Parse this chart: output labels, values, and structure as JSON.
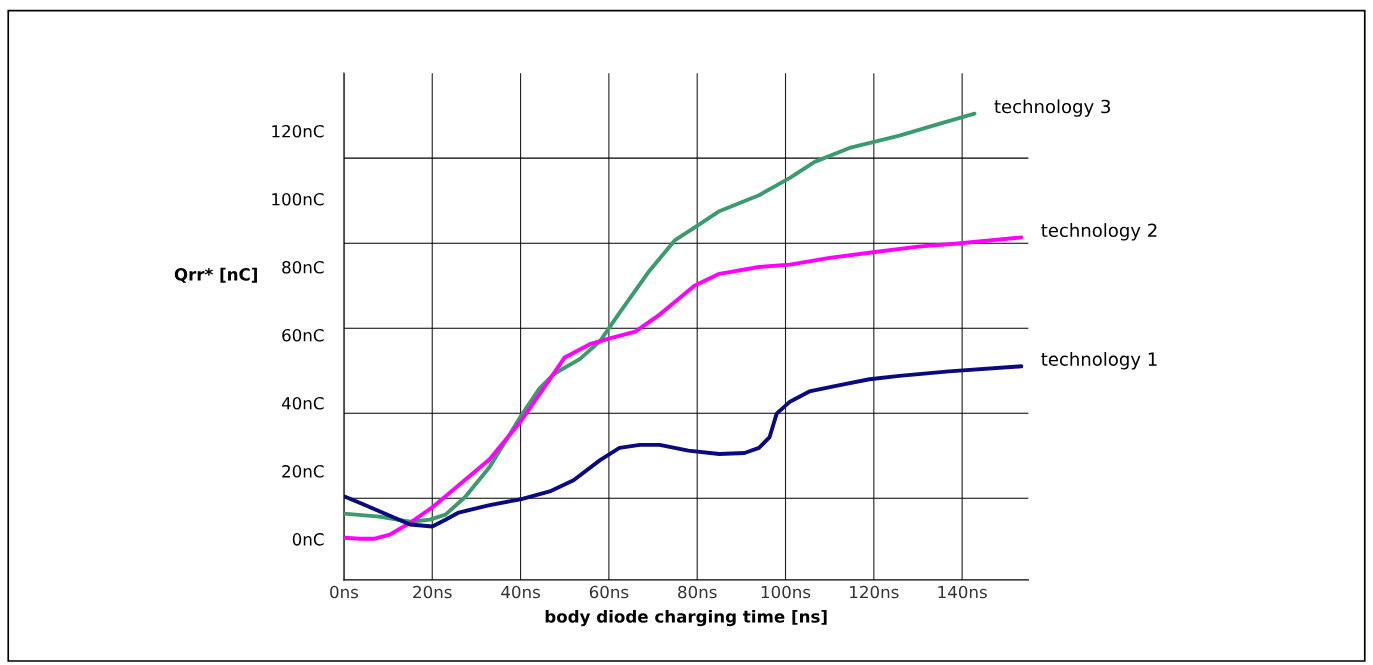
{
  "chart_data": {
    "type": "line",
    "xlabel": "body diode charging time [ns]",
    "ylabel": "Qrr* [nC]",
    "xlim": [
      0,
      155
    ],
    "xticks": [
      {
        "value": 0,
        "label": "0ns"
      },
      {
        "value": 20,
        "label": "20ns"
      },
      {
        "value": 40,
        "label": "40ns"
      },
      {
        "value": 60,
        "label": "60ns"
      },
      {
        "value": 80,
        "label": "80ns"
      },
      {
        "value": 100,
        "label": "100ns"
      },
      {
        "value": 120,
        "label": "120ns"
      },
      {
        "value": 140,
        "label": "140ns"
      }
    ],
    "ylim": [
      -12,
      137
    ],
    "yticks": [
      {
        "value": 0,
        "label": "0nC"
      },
      {
        "value": 20,
        "label": "20nC"
      },
      {
        "value": 40,
        "label": "40nC"
      },
      {
        "value": 60,
        "label": "60nC"
      },
      {
        "value": 80,
        "label": "80nC"
      },
      {
        "value": 100,
        "label": "100nC"
      },
      {
        "value": 120,
        "label": "120nC"
      }
    ],
    "grid": "x",
    "legend": false,
    "marker": "none",
    "line_style": "solid",
    "ref_lines": [
      {
        "axis": "y",
        "value": 12,
        "color": "#000000"
      },
      {
        "axis": "y",
        "value": 37,
        "color": "#000000"
      },
      {
        "axis": "y",
        "value": 62,
        "color": "#000000"
      },
      {
        "axis": "y",
        "value": 87,
        "color": "#000000"
      },
      {
        "axis": "y",
        "value": 112,
        "color": "#000000"
      }
    ],
    "series": [
      {
        "name": "technology 3",
        "color": "#3c9b6e",
        "x": [
          0,
          8,
          15,
          19.5,
          23,
          27.4,
          33,
          40,
          44.3,
          47.7,
          53.4,
          58,
          62.4,
          69.2,
          74.9,
          80.5,
          85,
          94,
          101,
          106.6,
          114.5,
          125.8,
          134.8,
          142.8
        ],
        "values": [
          7.5,
          6.6,
          5.1,
          5.7,
          7.2,
          12.3,
          21.2,
          36,
          44.3,
          48.7,
          52.9,
          58.2,
          66.5,
          78.9,
          87.8,
          92.5,
          96.4,
          101.1,
          106.2,
          110.9,
          115,
          118.6,
          122.1,
          125.1
        ]
      },
      {
        "name": "technology 2",
        "color": "#ff00ff",
        "x": [
          0,
          3.6,
          7,
          10.4,
          15,
          20,
          26,
          33,
          40,
          45.5,
          50,
          55.7,
          60.2,
          66,
          71.5,
          79.4,
          85,
          94,
          101,
          110,
          119,
          130,
          139,
          153.4
        ],
        "values": [
          0.4,
          0.1,
          0.1,
          1.3,
          4.8,
          9.3,
          15.8,
          23.5,
          34.5,
          44.8,
          53.4,
          57.3,
          59,
          61,
          66,
          74.5,
          78,
          80,
          80.7,
          82.7,
          84.2,
          86,
          86.9,
          88.7
        ]
      },
      {
        "name": "technology 1",
        "color": "#0a0a80",
        "x": [
          0,
          4.75,
          15,
          20,
          23,
          26,
          33,
          40,
          46.6,
          52,
          58,
          62.4,
          67,
          71.5,
          78,
          85,
          90.7,
          94,
          96.4,
          98,
          101,
          105.4,
          112,
          119,
          125.8,
          137,
          153.4
        ],
        "values": [
          12.6,
          10,
          4.3,
          3.7,
          5.7,
          7.8,
          10,
          11.7,
          14,
          17.3,
          23.2,
          26.8,
          27.7,
          27.7,
          26,
          25,
          25.3,
          26.8,
          30,
          36.9,
          40.4,
          43.4,
          45.2,
          47,
          48,
          49.3,
          50.8
        ]
      }
    ]
  }
}
